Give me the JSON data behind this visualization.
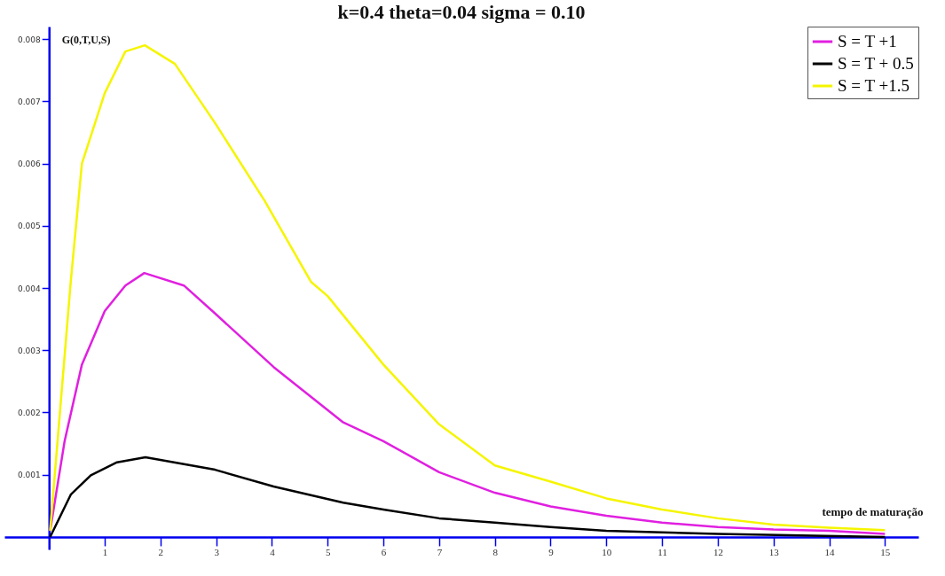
{
  "chart_data": {
    "type": "line",
    "title": "k=0.4        theta=0.04          sigma = 0.10",
    "xlabel": "tempo de maturação",
    "ylabel": "G(0,T,U,S)",
    "series": [
      {
        "name": "S = T +1",
        "color": "#e020e0",
        "x": [
          0.02,
          0.28,
          0.59,
          1.0,
          1.37,
          1.71,
          2.42,
          2.98,
          4.03,
          5.28,
          6,
          7,
          8,
          9,
          10,
          11,
          12,
          13,
          14,
          15
        ],
        "values": [
          0.0001,
          0.00154,
          0.00277,
          0.00363,
          0.00404,
          0.00424,
          0.00404,
          0.00359,
          0.00273,
          0.00184,
          0.00154,
          0.00104,
          0.00071,
          0.00049,
          0.00034,
          0.00023,
          0.00016,
          0.00012,
          0.0001,
          5e-05
        ]
      },
      {
        "name": "S = T + 0.5",
        "color": "#000000",
        "x": [
          0.02,
          0.39,
          0.75,
          1.22,
          1.73,
          2.98,
          4.03,
          5.28,
          6,
          7,
          8,
          9,
          10,
          12,
          15
        ],
        "values": [
          0.0,
          0.00068,
          0.00099,
          0.0012,
          0.00128,
          0.00108,
          0.00081,
          0.00055,
          0.00044,
          0.0003,
          0.00023,
          0.00016,
          0.0001,
          5e-05,
          0.0
        ]
      },
      {
        "name": "S = T +1.5",
        "color": "#f5f500",
        "x": [
          0.02,
          0.39,
          0.59,
          1.0,
          1.37,
          1.72,
          2.26,
          2.98,
          3.87,
          4.7,
          5,
          6,
          7,
          8,
          9,
          10,
          11,
          12,
          13,
          14,
          15
        ],
        "values": [
          0.0001,
          0.0041,
          0.006,
          0.00713,
          0.0078,
          0.0079,
          0.0076,
          0.00665,
          0.0054,
          0.0041,
          0.00387,
          0.00277,
          0.00181,
          0.00115,
          0.00089,
          0.00062,
          0.00044,
          0.0003,
          0.0002,
          0.00015,
          0.00011
        ]
      }
    ],
    "xlim": [
      -0.8,
      15.6
    ],
    "ylim": [
      -0.0002,
      0.0082
    ],
    "xticks": [
      1,
      2,
      3,
      4,
      5,
      6,
      7,
      8,
      9,
      10,
      11,
      12,
      13,
      14,
      15
    ],
    "yticks": [
      0.001,
      0.002,
      0.003,
      0.004,
      0.005,
      0.006,
      0.007,
      0.008
    ],
    "grid": false,
    "legend": "top right",
    "marker": "none",
    "line_style": "solid"
  }
}
